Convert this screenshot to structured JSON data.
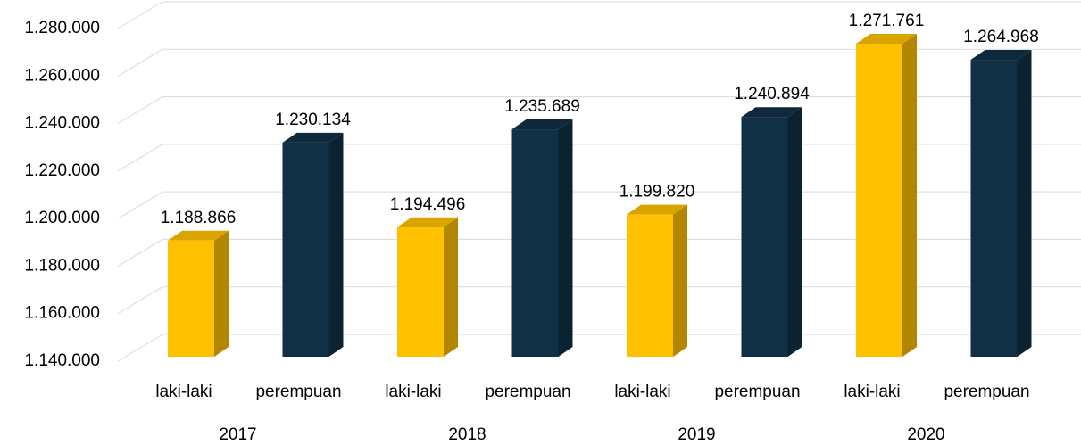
{
  "chart_data": {
    "type": "bar3d",
    "categories": [
      "2017",
      "2018",
      "2019",
      "2020"
    ],
    "series": [
      {
        "name": "laki-laki",
        "color": "#ffc000",
        "values": [
          1188866,
          1194496,
          1199820,
          1271761
        ],
        "value_labels": [
          "1.188.866",
          "1.194.496",
          "1.199.820",
          "1.271.761"
        ]
      },
      {
        "name": "perempuan",
        "color": "#0f3045",
        "values": [
          1230134,
          1235689,
          1240894,
          1264968
        ],
        "value_labels": [
          "1.230.134",
          "1.235.689",
          "1.240.894",
          "1.264.968"
        ]
      }
    ],
    "ylim": [
      1140000,
      1280000
    ],
    "yticks": [
      {
        "value": 1140000,
        "label": "1.140.000"
      },
      {
        "value": 1160000,
        "label": "1.160.000"
      },
      {
        "value": 1180000,
        "label": "1.180.000"
      },
      {
        "value": 1200000,
        "label": "1.200.000"
      },
      {
        "value": 1220000,
        "label": "1.220.000"
      },
      {
        "value": 1240000,
        "label": "1.240.000"
      },
      {
        "value": 1260000,
        "label": "1.260.000"
      },
      {
        "value": 1280000,
        "label": "1.280.000"
      }
    ],
    "grid": true
  }
}
